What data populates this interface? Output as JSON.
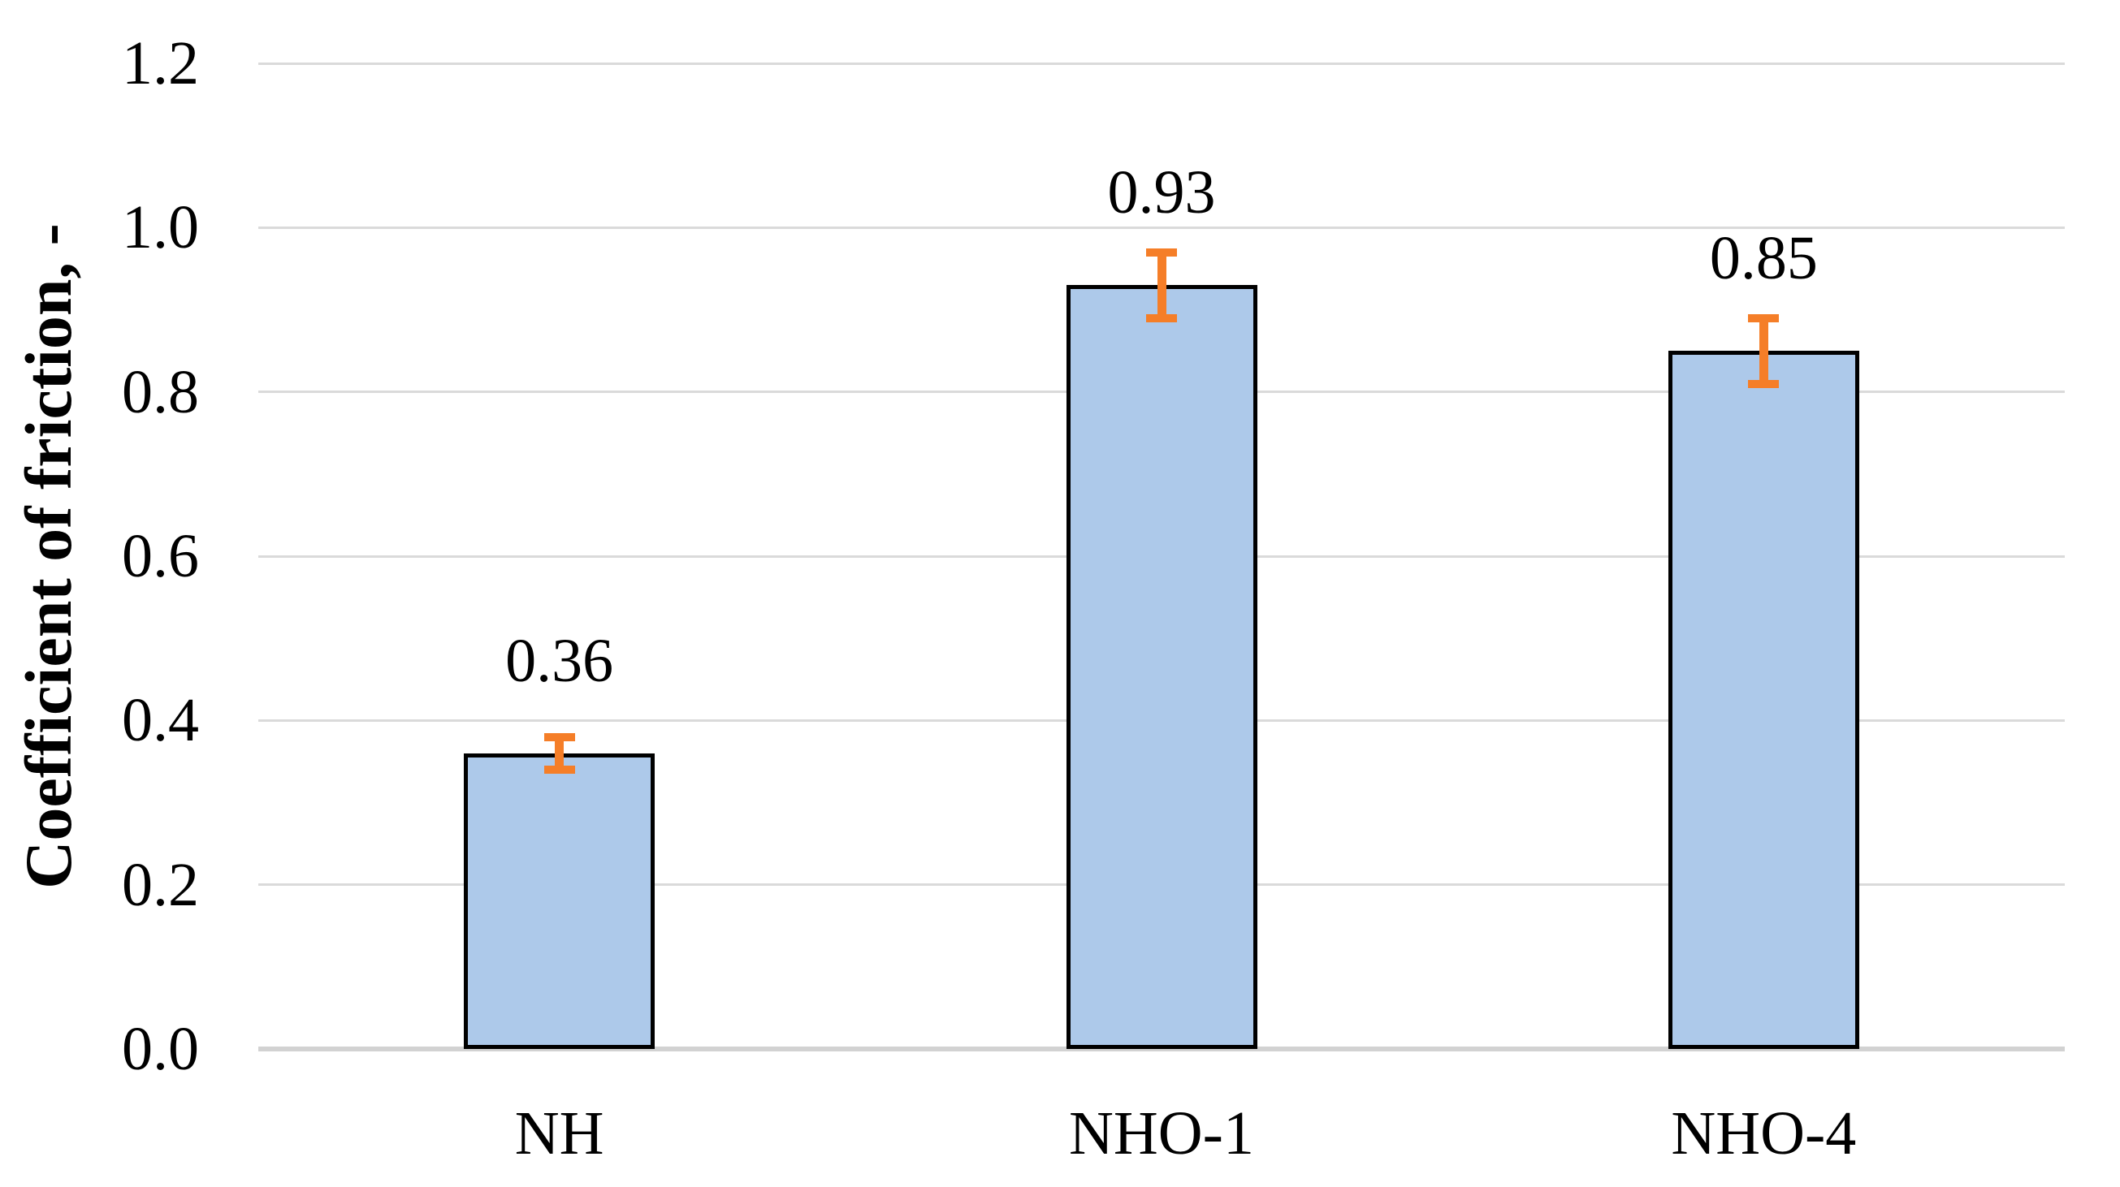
{
  "chart_data": {
    "type": "bar",
    "title": "",
    "categories": [
      "NH",
      "NHO-1",
      "NHO-4"
    ],
    "values": [
      0.36,
      0.93,
      0.85
    ],
    "data_labels": [
      "0.36",
      "0.93",
      "0.85"
    ],
    "error_bars": {
      "plus": [
        0.02,
        0.04,
        0.04
      ],
      "minus": [
        0.02,
        0.04,
        0.04
      ]
    },
    "xlabel": "",
    "ylabel": "Coefficient of friction, -",
    "ylim": [
      0,
      1.2
    ],
    "ytick_values": [
      0,
      0.2,
      0.4,
      0.6,
      0.8,
      1.0,
      1.2
    ],
    "ytick_labels": [
      "0.0",
      "0.2",
      "0.4",
      "0.6",
      "0.8",
      "1.0",
      "1.2"
    ],
    "grid": "horizontal",
    "legend": "none",
    "colors": {
      "bar_fill": "#ADC9EA",
      "bar_border": "#000000",
      "error_bar": "#F57E28",
      "gridline": "#DADADA",
      "baseline": "#D2D2D2",
      "text": "#000000",
      "background": "#FFFFFF"
    }
  }
}
